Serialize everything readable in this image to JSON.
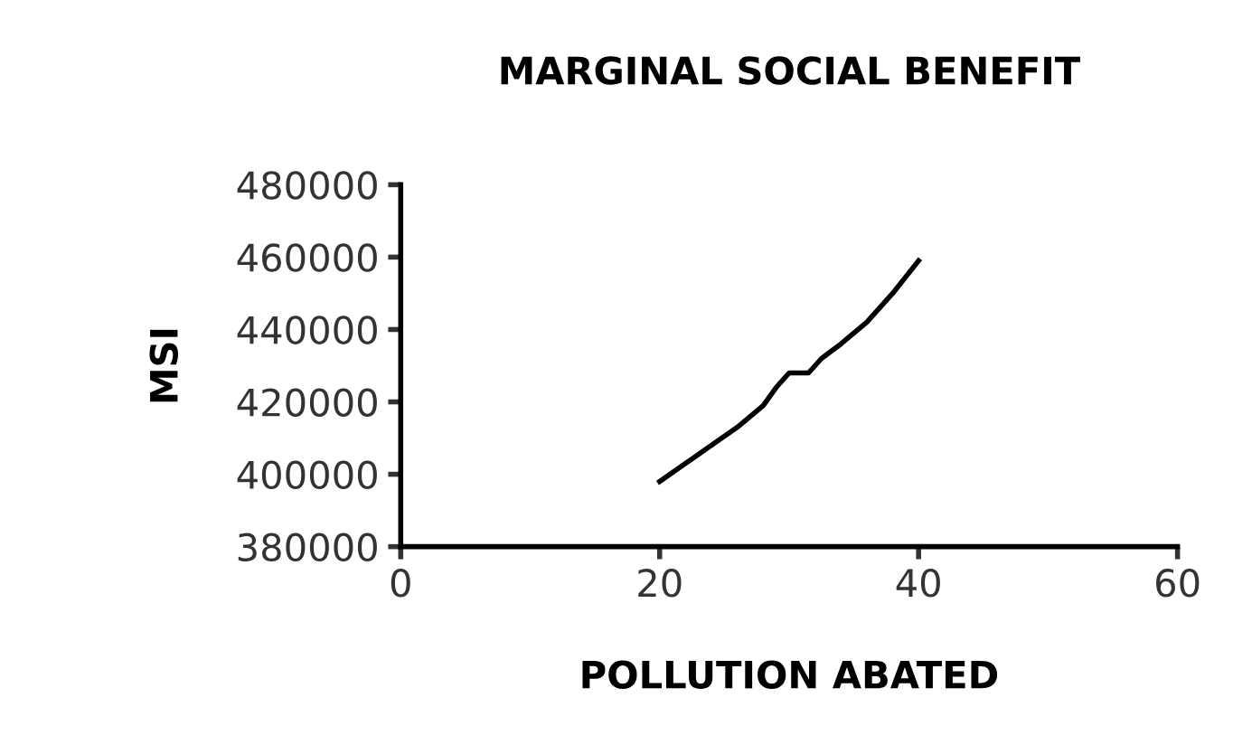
{
  "chart_data": {
    "type": "line",
    "title": "MARGINAL SOCIAL BENEFIT",
    "xlabel": "POLLUTION ABATED",
    "ylabel": "MSI",
    "x": [
      20,
      22,
      24,
      26,
      28,
      29,
      30,
      31.5,
      32.5,
      34,
      36,
      38,
      40
    ],
    "values": [
      398000,
      403000,
      408000,
      413000,
      419000,
      424000,
      428000,
      428000,
      432000,
      436000,
      442000,
      450000,
      459000
    ],
    "color": "#000000",
    "xlim": [
      0,
      60
    ],
    "xticks": [
      0,
      20,
      40,
      60
    ],
    "ylim": [
      380000,
      480000
    ],
    "yticks": [
      380000,
      400000,
      420000,
      440000,
      460000,
      480000
    ],
    "grid": false,
    "marker": "none",
    "line_style": "solid"
  }
}
